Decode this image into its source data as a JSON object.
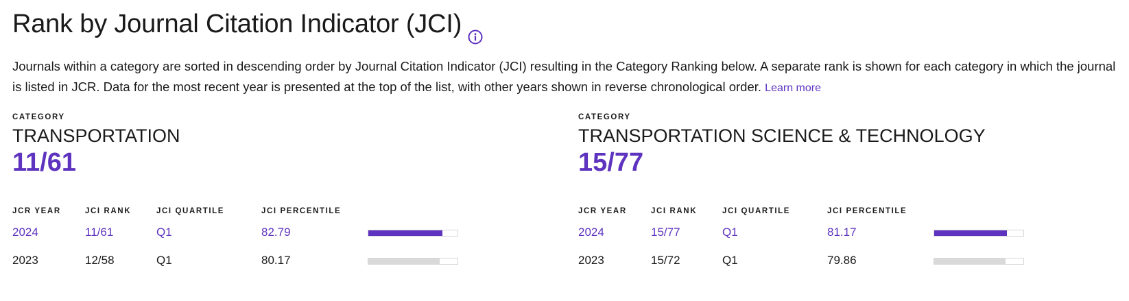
{
  "title": "Rank by Journal Citation Indicator (JCI)",
  "description": "Journals within a category are sorted in descending order by Journal Citation Indicator (JCI) resulting in the Category Ranking below. A separate rank is shown for each category in which the journal is listed in JCR. Data for the most recent year is presented at the top of the list, with other years shown in reverse chronological order.",
  "learn_more": "Learn more",
  "colors": {
    "accent": "#5e33bf",
    "bar_inactive": "#d9d9d9"
  },
  "icons": {
    "info": "info-circle-icon"
  },
  "headers": {
    "category": "CATEGORY",
    "jcr_year": "JCR YEAR",
    "jci_rank": "JCI RANK",
    "jci_quartile": "JCI QUARTILE",
    "jci_percentile": "JCI PERCENTILE"
  },
  "categories": [
    {
      "name": "TRANSPORTATION",
      "rank": "11/61",
      "rows": [
        {
          "year": "2024",
          "rank": "11/61",
          "quartile": "Q1",
          "percentile": "82.79",
          "pct_value": 82.79
        },
        {
          "year": "2023",
          "rank": "12/58",
          "quartile": "Q1",
          "percentile": "80.17",
          "pct_value": 80.17
        }
      ]
    },
    {
      "name": "TRANSPORTATION SCIENCE & TECHNOLOGY",
      "rank": "15/77",
      "rows": [
        {
          "year": "2024",
          "rank": "15/77",
          "quartile": "Q1",
          "percentile": "81.17",
          "pct_value": 81.17
        },
        {
          "year": "2023",
          "rank": "15/72",
          "quartile": "Q1",
          "percentile": "79.86",
          "pct_value": 79.86
        }
      ]
    }
  ]
}
